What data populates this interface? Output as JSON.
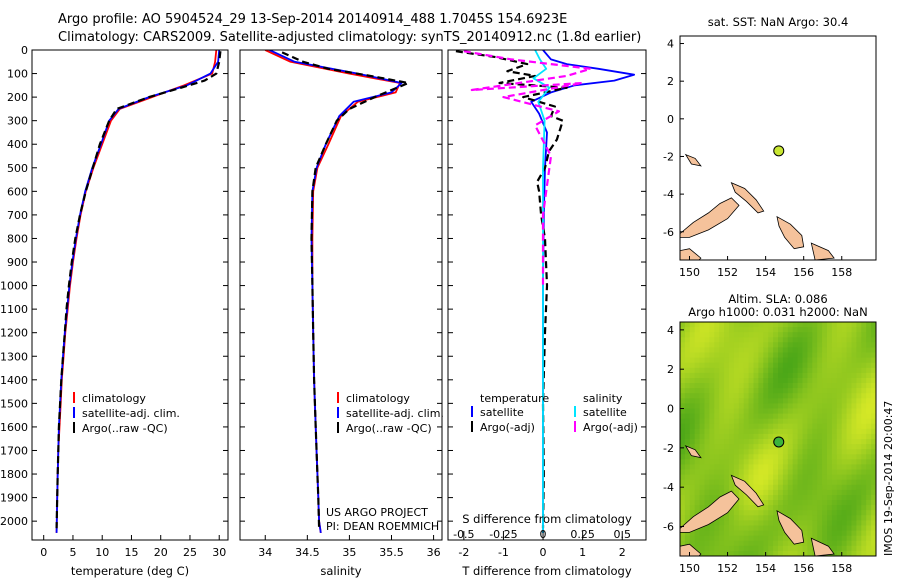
{
  "header": {
    "line1": "Argo profile: AO 5904524_29 13-Sep-2014 20140914_488 1.7045S 154.6923E",
    "line2": "Climatology: CARS2009. Satellite-adjusted climatology: synTS_20140912.nc (1.8d earlier)"
  },
  "credits": {
    "project": "US ARGO PROJECT",
    "pi": "PI: DEAN ROEMMICH"
  },
  "imos_stamp": "IMOS 19-Sep-2014 20:00:47",
  "colors": {
    "climatology": "#ff0000",
    "satellite": "#0000ff",
    "argo": "#000000",
    "s_sat": "#00e5ff",
    "s_argo": "#ff00ff"
  },
  "chart_data": [
    {
      "type": "line",
      "name": "temperature-profile",
      "xlabel": "temperature (deg C)",
      "ylabel": "",
      "xlim": [
        -2,
        31.5
      ],
      "ylim": [
        2080,
        0
      ],
      "xticks": [
        0,
        5,
        10,
        15,
        20,
        25,
        30
      ],
      "yticks": [
        0,
        100,
        200,
        300,
        400,
        500,
        600,
        700,
        800,
        900,
        1000,
        1100,
        1200,
        1300,
        1400,
        1500,
        1600,
        1700,
        1800,
        1900,
        2000
      ],
      "legend": [
        "climatology",
        "satellite-adj. clim.",
        "Argo(..raw -QC)"
      ],
      "series": [
        {
          "name": "climatology",
          "x": [
            29.5,
            29.3,
            28.8,
            24.0,
            18.5,
            13.0,
            11.5,
            10.0,
            8.5,
            7.2,
            6.3,
            5.6,
            5.0,
            4.5,
            4.1,
            3.7,
            3.4,
            3.1,
            2.9,
            2.7,
            2.5,
            2.4,
            2.3,
            2.2
          ],
          "y": [
            0,
            50,
            100,
            150,
            200,
            250,
            300,
            400,
            500,
            600,
            700,
            800,
            900,
            1000,
            1100,
            1200,
            1300,
            1400,
            1500,
            1600,
            1700,
            1800,
            1900,
            2050
          ]
        },
        {
          "name": "satellite-adj. clim.",
          "x": [
            30.0,
            29.8,
            28.5,
            24.5,
            18.0,
            12.8,
            11.2,
            9.8,
            8.3,
            7.1,
            6.2,
            5.5,
            4.9,
            4.4,
            4.0,
            3.6,
            3.3,
            3.0,
            2.8,
            2.6,
            2.5,
            2.4,
            2.3,
            2.2
          ],
          "y": [
            0,
            50,
            100,
            150,
            200,
            250,
            300,
            400,
            500,
            600,
            700,
            800,
            900,
            1000,
            1100,
            1200,
            1300,
            1400,
            1500,
            1600,
            1700,
            1800,
            1900,
            2050
          ]
        },
        {
          "name": "Argo(..raw -QC)",
          "x": [
            30.2,
            30.0,
            29.5,
            27.5,
            23.5,
            18.0,
            12.5,
            11.2,
            9.6,
            8.4,
            7.2,
            6.2,
            5.4,
            4.8,
            4.3,
            3.9,
            3.6,
            3.3,
            3.0,
            2.8,
            2.6,
            2.5,
            2.4,
            2.3,
            2.2
          ],
          "y": [
            5,
            50,
            100,
            130,
            160,
            200,
            250,
            300,
            400,
            500,
            600,
            700,
            800,
            900,
            1000,
            1100,
            1200,
            1300,
            1400,
            1500,
            1600,
            1700,
            1800,
            1900,
            2030
          ]
        }
      ]
    },
    {
      "type": "line",
      "name": "salinity-profile",
      "xlabel": "salinity",
      "ylabel": "",
      "xlim": [
        33.7,
        36.1
      ],
      "ylim": [
        2080,
        0
      ],
      "xticks": [
        34,
        34.5,
        35,
        35.5,
        36
      ],
      "legend": [
        "climatology",
        "satellite-adj. clim.",
        "Argo(..raw -QC)"
      ],
      "series": [
        {
          "name": "climatology",
          "x": [
            34.0,
            34.3,
            35.0,
            35.6,
            35.55,
            35.1,
            34.9,
            34.75,
            34.62,
            34.57,
            34.56,
            34.56,
            34.57,
            34.58,
            34.6,
            34.62,
            34.63,
            34.64,
            34.66
          ],
          "y": [
            0,
            50,
            100,
            140,
            180,
            220,
            280,
            400,
            500,
            600,
            800,
            1000,
            1200,
            1400,
            1600,
            1800,
            1900,
            2000,
            2050
          ]
        },
        {
          "name": "satellite-adj. clim.",
          "x": [
            34.05,
            34.35,
            35.1,
            35.62,
            35.5,
            35.05,
            34.88,
            34.72,
            34.61,
            34.56,
            34.55,
            34.56,
            34.57,
            34.58,
            34.6,
            34.62,
            34.63,
            34.64,
            34.66
          ],
          "y": [
            0,
            50,
            100,
            140,
            180,
            220,
            280,
            400,
            500,
            600,
            800,
            1000,
            1200,
            1400,
            1600,
            1800,
            1900,
            2000,
            2050
          ]
        },
        {
          "name": "Argo(..raw -QC)",
          "x": [
            34.2,
            34.45,
            34.75,
            35.25,
            35.7,
            35.5,
            35.3,
            35.0,
            34.85,
            34.72,
            34.6,
            34.56,
            34.55,
            34.56,
            34.57,
            34.58,
            34.6,
            34.62,
            34.63,
            34.64
          ],
          "y": [
            10,
            50,
            80,
            110,
            140,
            170,
            200,
            250,
            300,
            400,
            500,
            600,
            800,
            1000,
            1200,
            1400,
            1600,
            1800,
            1900,
            2030
          ]
        }
      ]
    },
    {
      "type": "line",
      "name": "difference-profile",
      "xlabel": "T difference from climatology",
      "x2label": "S difference from climatology",
      "xlim": [
        -2.4,
        2.6
      ],
      "x2lim": [
        -0.6,
        0.65
      ],
      "ylim": [
        2080,
        0
      ],
      "xticks": [
        -2,
        -1,
        0,
        1,
        2
      ],
      "x2ticks": [
        -0.5,
        -0.25,
        0,
        0.25,
        0.5
      ],
      "legend_heads": [
        "temperature",
        "salinity"
      ],
      "legend": [
        "satellite",
        "Argo(-adj)",
        "satellite",
        "Argo(-adj)"
      ],
      "series": [
        {
          "name": "T satellite",
          "x": [
            0.0,
            0.2,
            0.6,
            1.4,
            2.3,
            1.8,
            0.8,
            0.2,
            -0.3,
            -0.1,
            0.1,
            0.05,
            0.02,
            0.0,
            0.0,
            0.0,
            0.0
          ],
          "y": [
            0,
            40,
            60,
            80,
            105,
            130,
            150,
            180,
            220,
            270,
            350,
            500,
            700,
            1000,
            1400,
            1800,
            2050
          ]
        },
        {
          "name": "T Argo(-adj)",
          "x": [
            -2.2,
            -1.2,
            -0.4,
            -0.9,
            -0.2,
            -1.1,
            0.6,
            -0.5,
            0.3,
            0.2,
            0.5,
            0.35,
            0.15,
            0.05,
            -0.15,
            -0.1,
            -0.05,
            0.05,
            0.1,
            0.05,
            0.0,
            0.02,
            0.0
          ],
          "y": [
            5,
            30,
            60,
            90,
            110,
            140,
            160,
            200,
            240,
            280,
            300,
            380,
            430,
            500,
            560,
            600,
            700,
            800,
            1000,
            1200,
            1500,
            1800,
            2030
          ]
        },
        {
          "name": "S satellite",
          "x": [
            -0.05,
            -0.02,
            0.02,
            -0.06,
            0.04,
            -0.03,
            0.01,
            0.0,
            0.0,
            0.0,
            0.0
          ],
          "y": [
            0,
            40,
            80,
            120,
            160,
            220,
            300,
            500,
            1000,
            1500,
            2050
          ]
        },
        {
          "name": "S Argo(-adj)",
          "x": [
            -0.5,
            -0.2,
            0.05,
            0.3,
            0.15,
            -0.45,
            0.25,
            -0.25,
            0.1,
            -0.05,
            0.05,
            0.0,
            0.0
          ],
          "y": [
            5,
            40,
            60,
            80,
            110,
            170,
            140,
            200,
            260,
            320,
            450,
            700,
            1000
          ]
        }
      ]
    },
    {
      "type": "scatter",
      "name": "sst-map",
      "title": "sat. SST: NaN Argo: 30.4",
      "xlim": [
        149.5,
        159.8
      ],
      "ylim": [
        -7.5,
        4.4
      ],
      "xticks": [
        150,
        152,
        154,
        156,
        158
      ],
      "yticks": [
        -6,
        -4,
        -2,
        0,
        2,
        4
      ],
      "points": [
        {
          "x": 154.69,
          "y": -1.7
        }
      ]
    },
    {
      "type": "heatmap",
      "name": "sla-map",
      "title": "Altim. SLA: 0.086",
      "subtitle": "Argo h1000: 0.031 h2000: NaN",
      "xlim": [
        149.5,
        159.8
      ],
      "ylim": [
        -7.5,
        4.4
      ],
      "xticks": [
        150,
        152,
        154,
        156,
        158
      ],
      "yticks": [
        -6,
        -4,
        -2,
        0,
        2,
        4
      ],
      "points": [
        {
          "x": 154.69,
          "y": -1.7
        }
      ]
    }
  ]
}
